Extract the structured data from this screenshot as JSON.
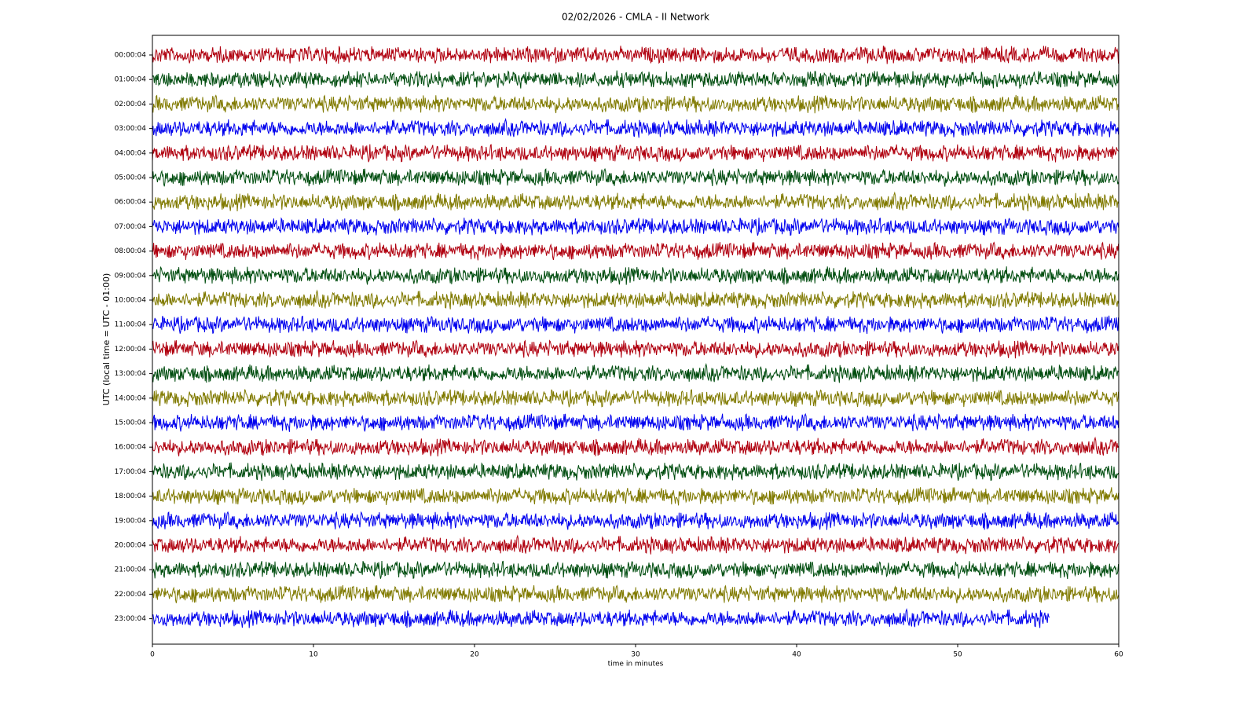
{
  "chart_data": {
    "type": "helicorder",
    "title": "02/02/2026 - CMLA - II Network",
    "x_label": "time in minutes",
    "y_label": "UTC (local time = UTC - 01:00)",
    "xlim": [
      0,
      60
    ],
    "xticks": [
      0,
      10,
      20,
      30,
      40,
      50,
      60
    ],
    "categories": [
      "00:00:04",
      "01:00:04",
      "02:00:04",
      "03:00:04",
      "04:00:04",
      "05:00:04",
      "06:00:04",
      "07:00:04",
      "08:00:04",
      "09:00:04",
      "10:00:04",
      "11:00:04",
      "12:00:04",
      "13:00:04",
      "14:00:04",
      "15:00:04",
      "16:00:04",
      "17:00:04",
      "18:00:04",
      "19:00:04",
      "20:00:04",
      "21:00:04",
      "22:00:04",
      "23:00:04"
    ],
    "colors": [
      "#b0000f",
      "#004d0f",
      "#807a00",
      "#0000ee"
    ],
    "trace_end": [
      60,
      60,
      60,
      60,
      60,
      60,
      60,
      60,
      60,
      60,
      60,
      60,
      60,
      60,
      60,
      60,
      60,
      60,
      60,
      60,
      60,
      60,
      60,
      55.7
    ]
  }
}
